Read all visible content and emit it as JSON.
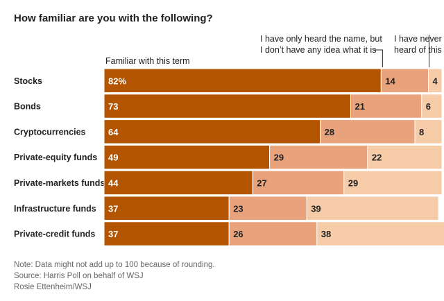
{
  "title": "How familiar are you with the following?",
  "legend": {
    "familiar": "Familiar with this term",
    "heard_line1": "I have only heard the name, but",
    "heard_line2": "I don’t have any idea what it is",
    "never_line1": "I have never",
    "never_line2": "heard of this"
  },
  "colors": {
    "familiar": "#b35500",
    "heard": "#e8a27c",
    "never": "#f6cba8",
    "label_on_dark": "#ffffff",
    "label_on_light": "#222222"
  },
  "chart_data": {
    "type": "bar",
    "orientation": "horizontal",
    "stacked": true,
    "title": "How familiar are you with the following?",
    "xlim": [
      0,
      100
    ],
    "categories": [
      "Stocks",
      "Bonds",
      "Cryptocurrencies",
      "Private-equity funds",
      "Private-markets funds",
      "Infrastructure funds",
      "Private-credit funds"
    ],
    "series": [
      {
        "name": "Familiar with this term",
        "key": "familiar",
        "values": [
          82,
          73,
          64,
          49,
          44,
          37,
          37
        ],
        "labels": [
          "82%",
          "73",
          "64",
          "49",
          "44",
          "37",
          "37"
        ]
      },
      {
        "name": "I have only heard the name, but I don’t have any idea what it is",
        "key": "heard",
        "values": [
          14,
          21,
          28,
          29,
          27,
          23,
          26
        ],
        "labels": [
          "14",
          "21",
          "28",
          "29",
          "27",
          "23",
          "26"
        ]
      },
      {
        "name": "I have never heard of this",
        "key": "never",
        "values": [
          4,
          6,
          8,
          22,
          29,
          39,
          38
        ],
        "labels": [
          "4",
          "6",
          "8",
          "22",
          "29",
          "39",
          "38"
        ]
      }
    ]
  },
  "footer": {
    "note": "Note: Data might not add up to 100 because of rounding.",
    "source": "Source: Harris Poll on behalf of WSJ",
    "credit": "Rosie Ettenheim/WSJ"
  }
}
